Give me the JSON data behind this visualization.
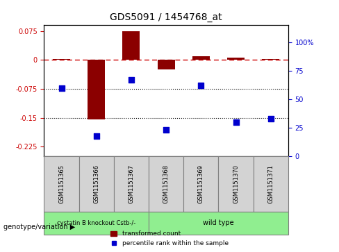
{
  "title": "GDS5091 / 1454768_at",
  "samples": [
    "GSM1151365",
    "GSM1151366",
    "GSM1151367",
    "GSM1151368",
    "GSM1151369",
    "GSM1151370",
    "GSM1151371"
  ],
  "bar_values": [
    0.003,
    -0.155,
    0.075,
    -0.025,
    0.01,
    0.005,
    0.002
  ],
  "scatter_values": [
    60,
    18,
    67,
    23,
    62,
    30,
    33
  ],
  "groups": [
    {
      "label": "cystatin B knockout Cstb-/-",
      "span": [
        0,
        3
      ],
      "color": "#90ee90"
    },
    {
      "label": "wild type",
      "span": [
        3,
        7
      ],
      "color": "#90ee90"
    }
  ],
  "group_bg_colors": [
    "#90ee90",
    "#90ee90"
  ],
  "left_yticks": [
    0.075,
    0,
    -0.075,
    -0.15,
    -0.225
  ],
  "left_ylabels": [
    "0.075",
    "0",
    "-0.075",
    "-0.15",
    "-0.225"
  ],
  "right_yticks": [
    100,
    75,
    50,
    25,
    0
  ],
  "right_ylabels": [
    "100%",
    "75",
    "50",
    "25",
    "0"
  ],
  "ylim_left": [
    -0.25,
    0.09
  ],
  "ylim_right": [
    0,
    115
  ],
  "bar_color": "#8B0000",
  "scatter_color": "#0000CD",
  "ref_line_color": "#CC0000",
  "dotted_line_color": "#000000",
  "dotted_line_values": [
    -0.075,
    -0.15
  ],
  "legend_bar_label": "transformed count",
  "legend_scatter_label": "percentile rank within the sample",
  "genotype_label": "genotype/variation",
  "group1_label": "cystatin B knockout Cstb-/-",
  "group2_label": "wild type",
  "group1_indices": [
    0,
    1,
    2
  ],
  "group2_indices": [
    3,
    4,
    5,
    6
  ],
  "plot_bg_color": "#ffffff",
  "axes_bg_color": "#ffffff",
  "tick_label_color_left": "#CC0000",
  "tick_label_color_right": "#0000CD"
}
